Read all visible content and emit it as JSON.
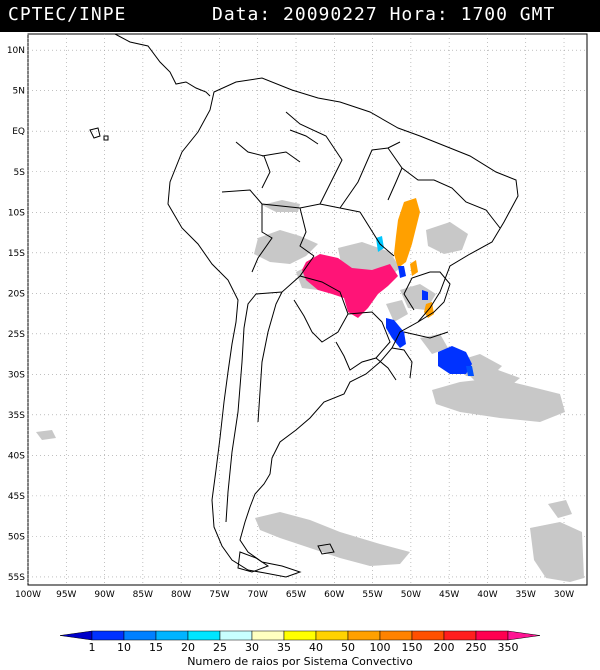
{
  "header": {
    "title": "CPTEC/INPE",
    "date_label": "Data:",
    "date_value": "20090227",
    "time_label": "Hora:",
    "time_value": "1700 GMT"
  },
  "map": {
    "lat_labels": [
      "10N",
      "5N",
      "EQ",
      "5S",
      "10S",
      "15S",
      "20S",
      "25S",
      "30S",
      "35S",
      "40S",
      "45S",
      "50S",
      "55S"
    ],
    "lon_labels": [
      "100W",
      "95W",
      "90W",
      "85W",
      "80W",
      "75W",
      "70W",
      "65W",
      "60W",
      "55W",
      "50W",
      "45W",
      "40W",
      "35W",
      "30W"
    ],
    "lat_range": [
      12,
      -56
    ],
    "lon_range": [
      -100,
      -27
    ],
    "grid": true
  },
  "legend": {
    "values": [
      "1",
      "10",
      "15",
      "20",
      "25",
      "30",
      "35",
      "40",
      "50",
      "100",
      "150",
      "200",
      "250",
      "350"
    ],
    "colors": [
      "#0000c8",
      "#0032ff",
      "#0080ff",
      "#00b4ff",
      "#00e6ff",
      "#c8ffff",
      "#ffffc0",
      "#ffff00",
      "#ffd200",
      "#ffa000",
      "#ff8200",
      "#ff5000",
      "#ff1e1e",
      "#ff0050",
      "#ff1493"
    ],
    "caption": "Numero de raios por Sistema Convectivo"
  }
}
